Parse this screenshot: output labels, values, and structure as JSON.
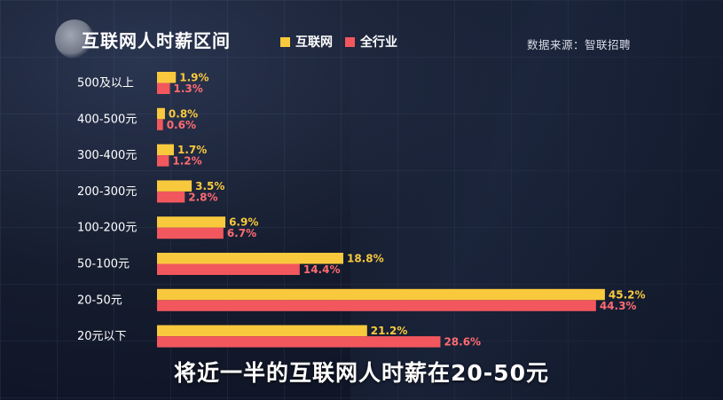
{
  "colors": {
    "internet": "#F9C93D",
    "all_industry": "#F2575E"
  },
  "source": "数据来源：智联招聘",
  "subtitle": "将近一半的互联网人时薪在20-50元",
  "chart_data": {
    "type": "bar",
    "orientation": "horizontal",
    "title": "互联网人时薪区间",
    "categories": [
      "500及以上",
      "400-500元",
      "300-400元",
      "200-300元",
      "100-200元",
      "50-100元",
      "20-50元",
      "20元以下"
    ],
    "series": [
      {
        "name": "互联网",
        "values": [
          1.9,
          0.8,
          1.7,
          3.5,
          6.9,
          18.8,
          45.2,
          21.2
        ],
        "labels": [
          "1.9%",
          "0.8%",
          "1.7%",
          "3.5%",
          "6.9%",
          "18.8%",
          "45.2%",
          "21.2%"
        ]
      },
      {
        "name": "全行业",
        "values": [
          1.3,
          0.6,
          1.2,
          2.8,
          6.7,
          14.4,
          44.3,
          28.6
        ],
        "labels": [
          "1.3%",
          "0.6%",
          "1.2%",
          "2.8%",
          "6.7%",
          "14.4%",
          "44.3%",
          "28.6%"
        ]
      }
    ],
    "xlim": [
      0,
      50
    ],
    "unit": "%",
    "legend_position": "top"
  }
}
